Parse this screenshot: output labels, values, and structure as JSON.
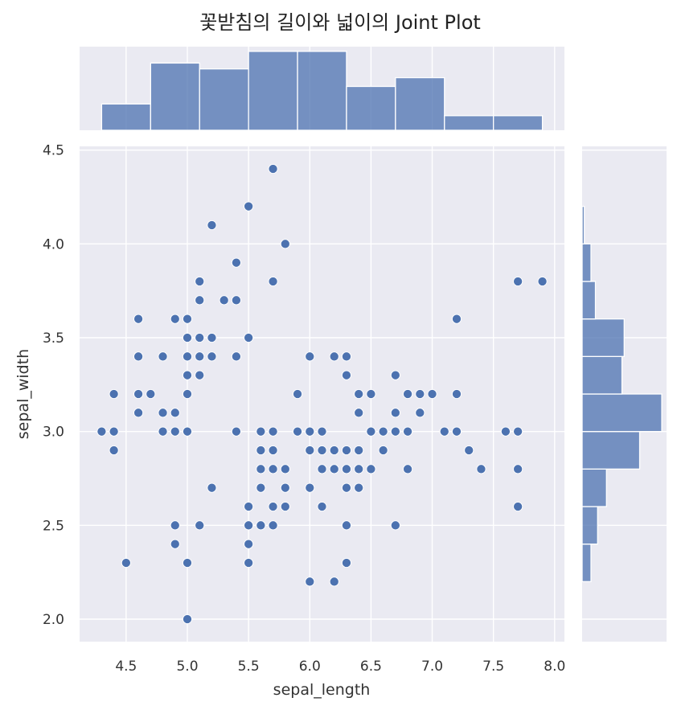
{
  "chart_data": {
    "type": "scatter",
    "title": "꽃받침의 길이와 넓이의 Joint Plot",
    "xlabel": "sepal_length",
    "ylabel": "sepal_width",
    "xlim": [
      4.12,
      8.08
    ],
    "ylim": [
      1.88,
      4.52
    ],
    "xticks": [
      "4.5",
      "5.0",
      "5.5",
      "6.0",
      "6.5",
      "7.0",
      "7.5",
      "8.0"
    ],
    "yticks": [
      "2.0",
      "2.5",
      "3.0",
      "3.5",
      "4.0",
      "4.5"
    ],
    "grid": true,
    "marker_color": "#4c72b0",
    "points": [
      [
        4.3,
        3.0
      ],
      [
        4.4,
        3.2
      ],
      [
        4.4,
        3.0
      ],
      [
        4.4,
        2.9
      ],
      [
        4.5,
        2.3
      ],
      [
        4.6,
        3.6
      ],
      [
        4.6,
        3.4
      ],
      [
        4.6,
        3.2
      ],
      [
        4.6,
        3.1
      ],
      [
        4.7,
        3.2
      ],
      [
        4.8,
        3.4
      ],
      [
        4.8,
        3.1
      ],
      [
        4.8,
        3.0
      ],
      [
        4.9,
        3.6
      ],
      [
        4.9,
        3.1
      ],
      [
        4.9,
        3.0
      ],
      [
        4.9,
        2.5
      ],
      [
        4.9,
        2.4
      ],
      [
        5.0,
        3.6
      ],
      [
        5.0,
        3.5
      ],
      [
        5.0,
        3.4
      ],
      [
        5.0,
        3.3
      ],
      [
        5.0,
        3.2
      ],
      [
        5.0,
        3.0
      ],
      [
        5.0,
        2.3
      ],
      [
        5.0,
        2.0
      ],
      [
        5.1,
        3.8
      ],
      [
        5.1,
        3.7
      ],
      [
        5.1,
        3.5
      ],
      [
        5.1,
        3.4
      ],
      [
        5.1,
        3.3
      ],
      [
        5.1,
        2.5
      ],
      [
        5.2,
        4.1
      ],
      [
        5.2,
        3.5
      ],
      [
        5.2,
        3.4
      ],
      [
        5.2,
        2.7
      ],
      [
        5.3,
        3.7
      ],
      [
        5.4,
        3.9
      ],
      [
        5.4,
        3.7
      ],
      [
        5.4,
        3.4
      ],
      [
        5.4,
        3.0
      ],
      [
        5.5,
        4.2
      ],
      [
        5.5,
        3.5
      ],
      [
        5.5,
        2.6
      ],
      [
        5.5,
        2.5
      ],
      [
        5.5,
        2.4
      ],
      [
        5.5,
        2.3
      ],
      [
        5.6,
        3.0
      ],
      [
        5.6,
        2.9
      ],
      [
        5.6,
        2.8
      ],
      [
        5.6,
        2.7
      ],
      [
        5.6,
        2.5
      ],
      [
        5.7,
        4.4
      ],
      [
        5.7,
        3.8
      ],
      [
        5.7,
        3.0
      ],
      [
        5.7,
        2.9
      ],
      [
        5.7,
        2.8
      ],
      [
        5.7,
        2.6
      ],
      [
        5.7,
        2.5
      ],
      [
        5.8,
        4.0
      ],
      [
        5.8,
        2.8
      ],
      [
        5.8,
        2.7
      ],
      [
        5.8,
        2.6
      ],
      [
        5.9,
        3.2
      ],
      [
        5.9,
        3.0
      ],
      [
        6.0,
        3.4
      ],
      [
        6.0,
        3.0
      ],
      [
        6.0,
        2.9
      ],
      [
        6.0,
        2.7
      ],
      [
        6.0,
        2.2
      ],
      [
        6.1,
        3.0
      ],
      [
        6.1,
        2.9
      ],
      [
        6.1,
        2.8
      ],
      [
        6.1,
        2.6
      ],
      [
        6.2,
        3.4
      ],
      [
        6.2,
        2.9
      ],
      [
        6.2,
        2.8
      ],
      [
        6.2,
        2.2
      ],
      [
        6.3,
        3.4
      ],
      [
        6.3,
        3.3
      ],
      [
        6.3,
        2.9
      ],
      [
        6.3,
        2.8
      ],
      [
        6.3,
        2.7
      ],
      [
        6.3,
        2.5
      ],
      [
        6.3,
        2.3
      ],
      [
        6.4,
        3.2
      ],
      [
        6.4,
        3.1
      ],
      [
        6.4,
        2.9
      ],
      [
        6.4,
        2.8
      ],
      [
        6.4,
        2.7
      ],
      [
        6.5,
        3.2
      ],
      [
        6.5,
        3.0
      ],
      [
        6.5,
        2.8
      ],
      [
        6.6,
        3.0
      ],
      [
        6.6,
        2.9
      ],
      [
        6.7,
        3.3
      ],
      [
        6.7,
        3.1
      ],
      [
        6.7,
        3.0
      ],
      [
        6.7,
        2.5
      ],
      [
        6.8,
        3.2
      ],
      [
        6.8,
        3.0
      ],
      [
        6.8,
        2.8
      ],
      [
        6.9,
        3.2
      ],
      [
        6.9,
        3.1
      ],
      [
        7.0,
        3.2
      ],
      [
        7.1,
        3.0
      ],
      [
        7.2,
        3.6
      ],
      [
        7.2,
        3.2
      ],
      [
        7.2,
        3.0
      ],
      [
        7.3,
        2.9
      ],
      [
        7.4,
        2.8
      ],
      [
        7.6,
        3.0
      ],
      [
        7.7,
        3.8
      ],
      [
        7.7,
        3.0
      ],
      [
        7.7,
        2.8
      ],
      [
        7.7,
        2.6
      ],
      [
        7.9,
        3.8
      ]
    ],
    "marginal_x": {
      "type": "histogram",
      "bin_edges": [
        4.3,
        4.7,
        5.1,
        5.5,
        5.9,
        6.3,
        6.7,
        7.1,
        7.5,
        7.9
      ],
      "counts": [
        9,
        23,
        21,
        27,
        27,
        15,
        18,
        5,
        5
      ]
    },
    "marginal_y": {
      "type": "histogram",
      "bin_edges": [
        2.2,
        2.4,
        2.6,
        2.8,
        3.0,
        3.2,
        3.4,
        3.6,
        3.8,
        4.0,
        4.2
      ],
      "counts": [
        4,
        7,
        11,
        26,
        36,
        18,
        19,
        6,
        4,
        1
      ]
    }
  }
}
